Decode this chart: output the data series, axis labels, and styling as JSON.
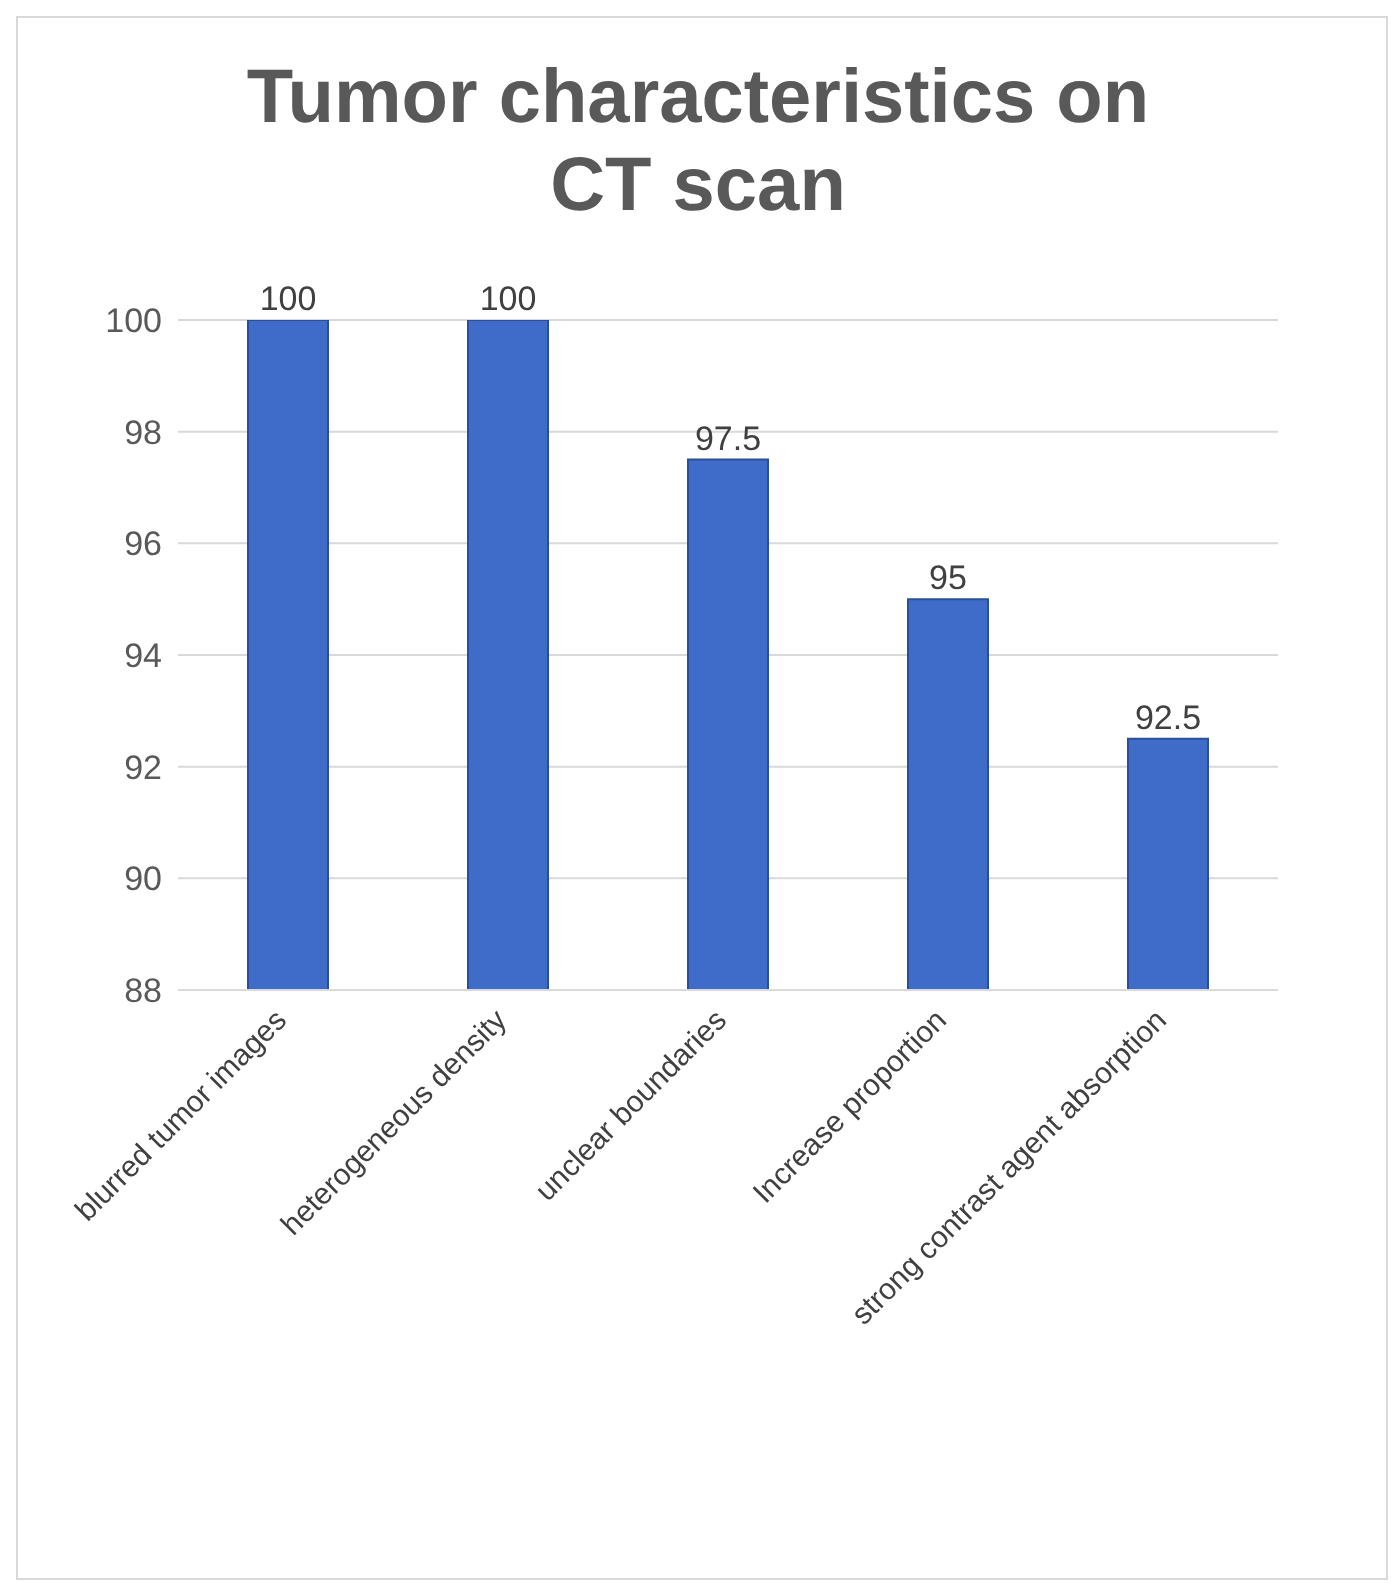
{
  "chart_data": {
    "type": "bar",
    "title": "Tumor characteristics on CT scan",
    "categories": [
      "blurred tumor images",
      "heterogeneous density",
      "unclear boundaries",
      "Increase proportion",
      "strong contrast agent absorption"
    ],
    "values": [
      100,
      100,
      97.5,
      95,
      92.5
    ],
    "color": "#3f6cc9",
    "ylim": [
      88,
      100
    ],
    "yticks": [
      88,
      90,
      92,
      94,
      96,
      98,
      100
    ],
    "grid": "y",
    "data_labels": true,
    "legend": false
  }
}
